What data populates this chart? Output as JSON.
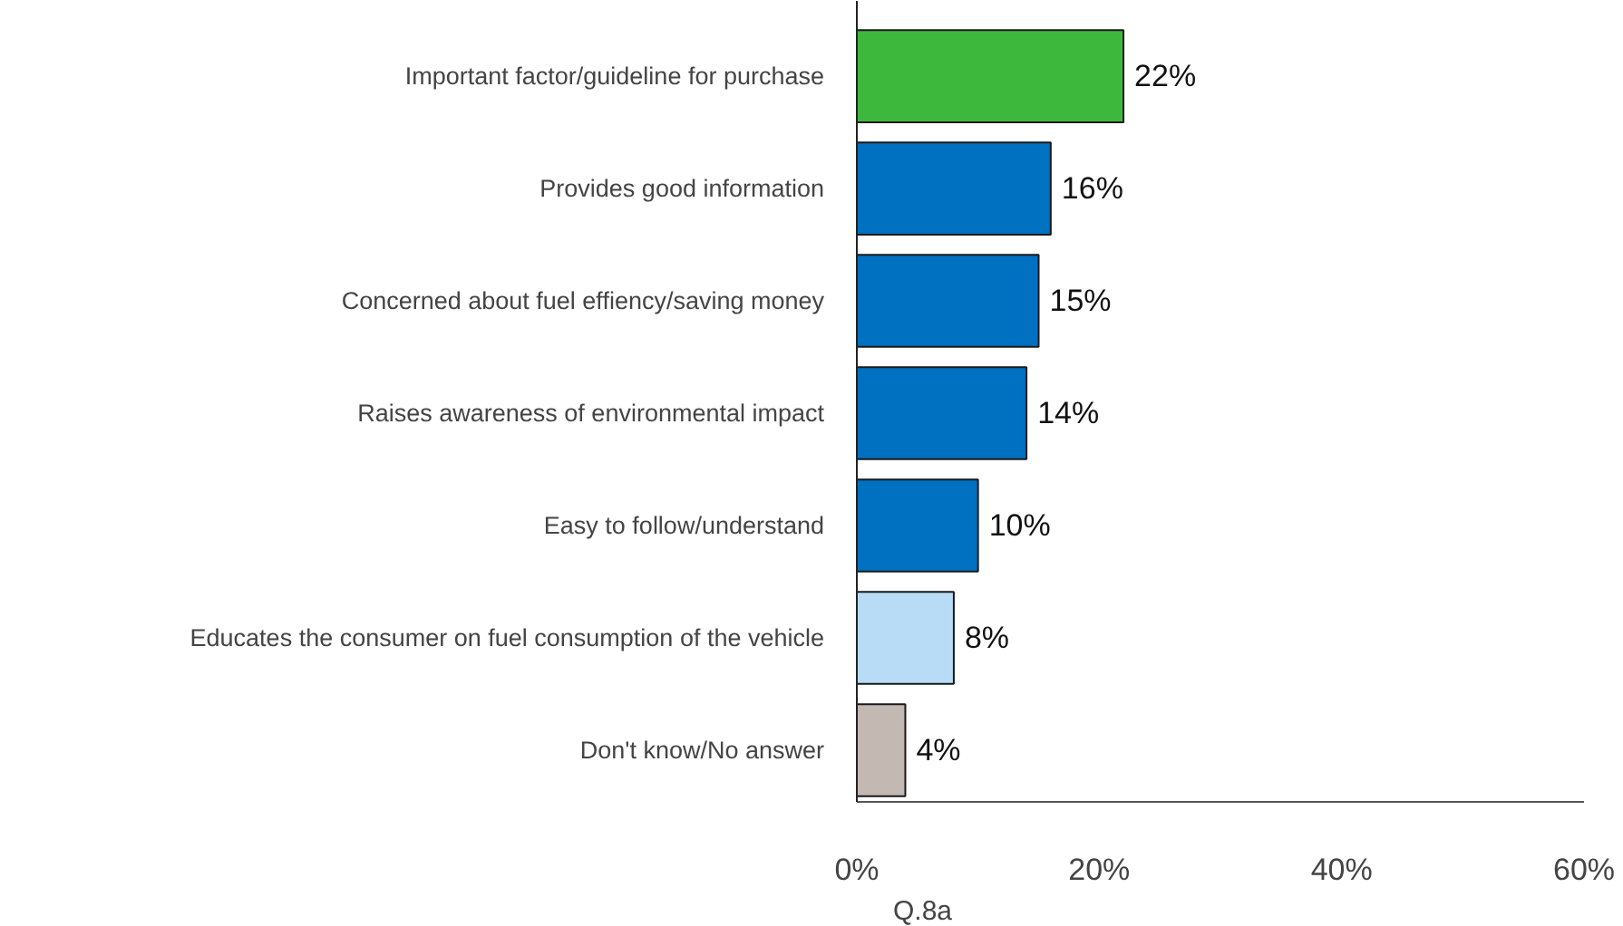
{
  "chart_data": {
    "type": "bar",
    "orientation": "horizontal",
    "categories": [
      "Important factor/guideline for purchase",
      "Provides good information",
      "Concerned about fuel effiency/saving money",
      "Raises awareness of environmental impact",
      "Easy to follow/understand",
      "Educates the consumer on fuel consumption of the vehicle",
      "Don't know/No answer"
    ],
    "values": [
      22,
      16,
      15,
      14,
      10,
      8,
      4
    ],
    "value_labels": [
      "22%",
      "16%",
      "15%",
      "14%",
      "10%",
      "8%",
      "4%"
    ],
    "colors": [
      "#3db83d",
      "#0070c0",
      "#0070c0",
      "#0070c0",
      "#0070c0",
      "#b8dcf5",
      "#c4b8b2"
    ],
    "xlim": [
      0,
      60
    ],
    "xticks": [
      {
        "value": 0,
        "label": "0%"
      },
      {
        "value": 20,
        "label": "20%"
      },
      {
        "value": 40,
        "label": "40%"
      },
      {
        "value": 60,
        "label": "60%"
      }
    ],
    "grid": false,
    "annotations": [
      "Q.8a"
    ]
  }
}
